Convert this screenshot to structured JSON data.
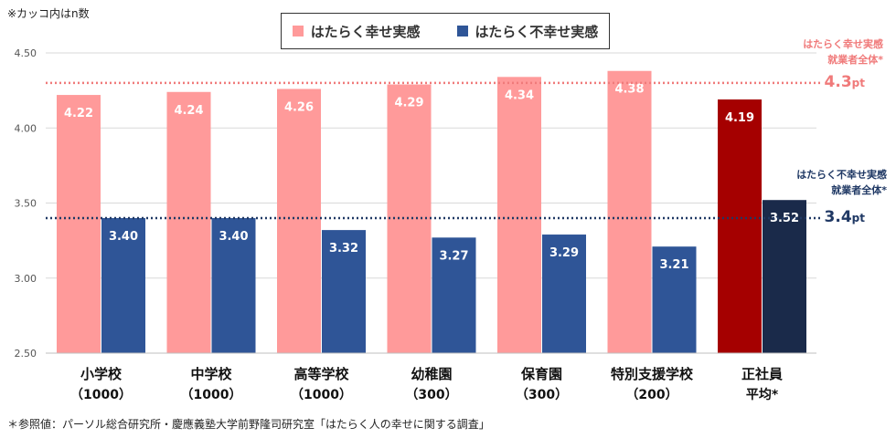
{
  "note_top": "※カッコ内はn数",
  "legend": {
    "happy": {
      "label": "はたらく幸せ実感",
      "color": "#ff9a9a"
    },
    "unhappy": {
      "label": "はたらく不幸せ実感",
      "color": "#2f5597"
    }
  },
  "reference": {
    "happy": {
      "label_line1": "はたらく幸せ実感",
      "label_line2": "就業者全体*",
      "value_text": "4.3",
      "unit": "pt",
      "value": 4.3,
      "color": "#f07a7a"
    },
    "unhappy": {
      "label_line1": "はたらく不幸せ実感",
      "label_line2": "就業者全体*",
      "value_text": "3.4",
      "unit": "pt",
      "value": 3.4,
      "color": "#1f3864"
    }
  },
  "footnote": "＊参照値：パーソル総合研究所・慶應義塾大学前野隆司研究室「はたらく人の幸せに関する調査」",
  "chart_data": {
    "type": "bar",
    "ylim": [
      2.5,
      4.5
    ],
    "yticks": [
      "2.50",
      "3.00",
      "3.50",
      "4.00",
      "4.50"
    ],
    "grid": true,
    "categories": [
      {
        "name": "小学校",
        "n": "（1000）"
      },
      {
        "name": "中学校",
        "n": "（1000）"
      },
      {
        "name": "高等学校",
        "n": "（1000）"
      },
      {
        "name": "幼稚園",
        "n": "（300）"
      },
      {
        "name": "保育園",
        "n": "（300）"
      },
      {
        "name": "特別支援学校",
        "n": "（200）"
      },
      {
        "name": "正社員",
        "n": "平均*"
      }
    ],
    "series": [
      {
        "name": "はたらく幸せ実感",
        "values": [
          4.22,
          4.24,
          4.26,
          4.29,
          4.34,
          4.38,
          4.19
        ],
        "labels": [
          "4.22",
          "4.24",
          "4.26",
          "4.29",
          "4.34",
          "4.38",
          "4.19"
        ],
        "colors": [
          "#ff9a9a",
          "#ff9a9a",
          "#ff9a9a",
          "#ff9a9a",
          "#ff9a9a",
          "#ff9a9a",
          "#a50000"
        ]
      },
      {
        "name": "はたらく不幸せ実感",
        "values": [
          3.4,
          3.4,
          3.32,
          3.27,
          3.29,
          3.21,
          3.52
        ],
        "labels": [
          "3.40",
          "3.40",
          "3.32",
          "3.27",
          "3.29",
          "3.21",
          "3.52"
        ],
        "colors": [
          "#2f5597",
          "#2f5597",
          "#2f5597",
          "#2f5597",
          "#2f5597",
          "#2f5597",
          "#1a2a4a"
        ]
      }
    ]
  }
}
